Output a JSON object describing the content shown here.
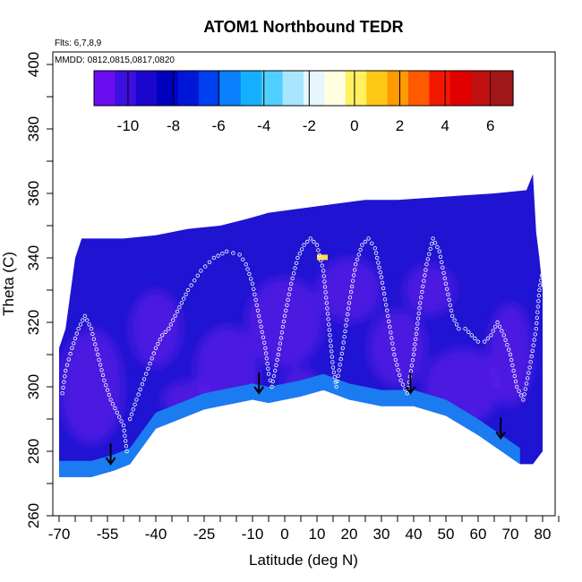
{
  "chart_data": {
    "type": "heatmap",
    "title": "ATOM1 Northbound TEDR",
    "annotations": {
      "flights": "Flts: 6,7,8,9",
      "dates": "MMDD: 0812,0815,0817,0820"
    },
    "xlabel": "Latitude (deg N)",
    "ylabel": "Theta (C)",
    "xlim": [
      -70,
      85
    ],
    "ylim": [
      260,
      405
    ],
    "x_tick_labels": [
      "-70",
      "-55",
      "-40",
      "-25",
      "-10",
      "0",
      "10",
      "20",
      "30",
      "40",
      "50",
      "60",
      "70",
      "80"
    ],
    "y_tick_labels": [
      "260",
      "280",
      "300",
      "320",
      "340",
      "360",
      "380",
      "400"
    ],
    "colorbar": {
      "range": [
        -11.5,
        7
      ],
      "tick_labels": [
        "-10",
        "-8",
        "-6",
        "-4",
        "-2",
        "0",
        "2",
        "4",
        "6"
      ],
      "colors": [
        "#6a0ef0",
        "#3d0fe0",
        "#1a06cc",
        "#0000c0",
        "#0016d8",
        "#0040f0",
        "#0a80ff",
        "#14b0ff",
        "#50d0ff",
        "#a8e6ff",
        "#e6f6ff",
        "#ffffe0",
        "#fff060",
        "#ffc814",
        "#ff9a00",
        "#ff5a00",
        "#f21800",
        "#e00000",
        "#c01010",
        "#a01818"
      ]
    },
    "field_colors": {
      "mean_tedr": "#1e14d2",
      "low_tedr": "#5b1ee6",
      "near_surface": "#1a7cf0",
      "high_tedr": "#ffe040"
    },
    "envelope_upper": [
      [
        -70,
        312
      ],
      [
        -68,
        318
      ],
      [
        -65,
        340
      ],
      [
        -63,
        346
      ],
      [
        -50,
        346
      ],
      [
        -40,
        347
      ],
      [
        -30,
        349
      ],
      [
        -20,
        350
      ],
      [
        -12,
        352
      ],
      [
        -5,
        354
      ],
      [
        10,
        356
      ],
      [
        25,
        358
      ],
      [
        35,
        358
      ],
      [
        50,
        359
      ],
      [
        65,
        360
      ],
      [
        75,
        361
      ],
      [
        77,
        366
      ],
      [
        78,
        348
      ],
      [
        79,
        340
      ],
      [
        80,
        330
      ],
      [
        80,
        280
      ],
      [
        77,
        276
      ],
      [
        73,
        276
      ]
    ],
    "envelope_lower": [
      [
        -70,
        272
      ],
      [
        -60,
        272
      ],
      [
        -53,
        274
      ],
      [
        -48,
        276
      ],
      [
        -40,
        287
      ],
      [
        -35,
        289
      ],
      [
        -25,
        293
      ],
      [
        -10,
        296
      ],
      [
        -5,
        295
      ],
      [
        5,
        297
      ],
      [
        12,
        299
      ],
      [
        20,
        296
      ],
      [
        30,
        294
      ],
      [
        40,
        294
      ],
      [
        50,
        291
      ],
      [
        60,
        285
      ],
      [
        73,
        276
      ]
    ],
    "aircraft_track": [
      [
        [
          -69,
          298
        ],
        [
          -68,
          305
        ],
        [
          -66,
          312
        ],
        [
          -64,
          318
        ],
        [
          -62,
          322
        ],
        [
          -60,
          318
        ],
        [
          -58,
          310
        ],
        [
          -56,
          302
        ],
        [
          -54,
          296
        ],
        [
          -52,
          292
        ],
        [
          -50,
          288
        ],
        [
          -49,
          280
        ],
        [
          -48,
          278
        ]
      ],
      [
        [
          -48,
          290
        ],
        [
          -46,
          296
        ],
        [
          -43,
          304
        ],
        [
          -40,
          312
        ],
        [
          -38,
          316
        ],
        [
          -36,
          318
        ],
        [
          -34,
          322
        ],
        [
          -32,
          326
        ],
        [
          -30,
          330
        ],
        [
          -26,
          336
        ],
        [
          -22,
          340
        ],
        [
          -18,
          342
        ],
        [
          -14,
          341
        ],
        [
          -12,
          338
        ],
        [
          -10,
          332
        ],
        [
          -8,
          322
        ],
        [
          -6,
          312
        ],
        [
          -5,
          304
        ],
        [
          -4,
          300
        ]
      ],
      [
        [
          -4,
          300
        ],
        [
          -2,
          310
        ],
        [
          0,
          322
        ],
        [
          2,
          332
        ],
        [
          4,
          340
        ],
        [
          6,
          344
        ],
        [
          8,
          346
        ],
        [
          10,
          344
        ],
        [
          12,
          336
        ],
        [
          13,
          326
        ],
        [
          14,
          316
        ],
        [
          15,
          306
        ],
        [
          16,
          300
        ]
      ],
      [
        [
          16,
          300
        ],
        [
          18,
          312
        ],
        [
          20,
          326
        ],
        [
          22,
          338
        ],
        [
          24,
          344
        ],
        [
          26,
          346
        ],
        [
          28,
          343
        ],
        [
          30,
          334
        ],
        [
          32,
          322
        ],
        [
          34,
          310
        ],
        [
          36,
          302
        ],
        [
          38,
          298
        ]
      ],
      [
        [
          38,
          298
        ],
        [
          40,
          310
        ],
        [
          42,
          326
        ],
        [
          44,
          338
        ],
        [
          46,
          346
        ],
        [
          48,
          342
        ],
        [
          50,
          332
        ],
        [
          52,
          322
        ],
        [
          54,
          318
        ],
        [
          56,
          318
        ],
        [
          58,
          316
        ],
        [
          60,
          314
        ],
        [
          62,
          314
        ],
        [
          64,
          316
        ],
        [
          66,
          320
        ]
      ],
      [
        [
          66,
          320
        ],
        [
          68,
          316
        ],
        [
          70,
          310
        ],
        [
          72,
          300
        ],
        [
          74,
          296
        ],
        [
          76,
          306
        ],
        [
          78,
          318
        ],
        [
          79,
          330
        ],
        [
          80,
          336
        ]
      ]
    ],
    "arrows": [
      [
        -54,
        278
      ],
      [
        -8,
        300
      ],
      [
        39,
        300
      ],
      [
        67,
        286
      ]
    ]
  }
}
